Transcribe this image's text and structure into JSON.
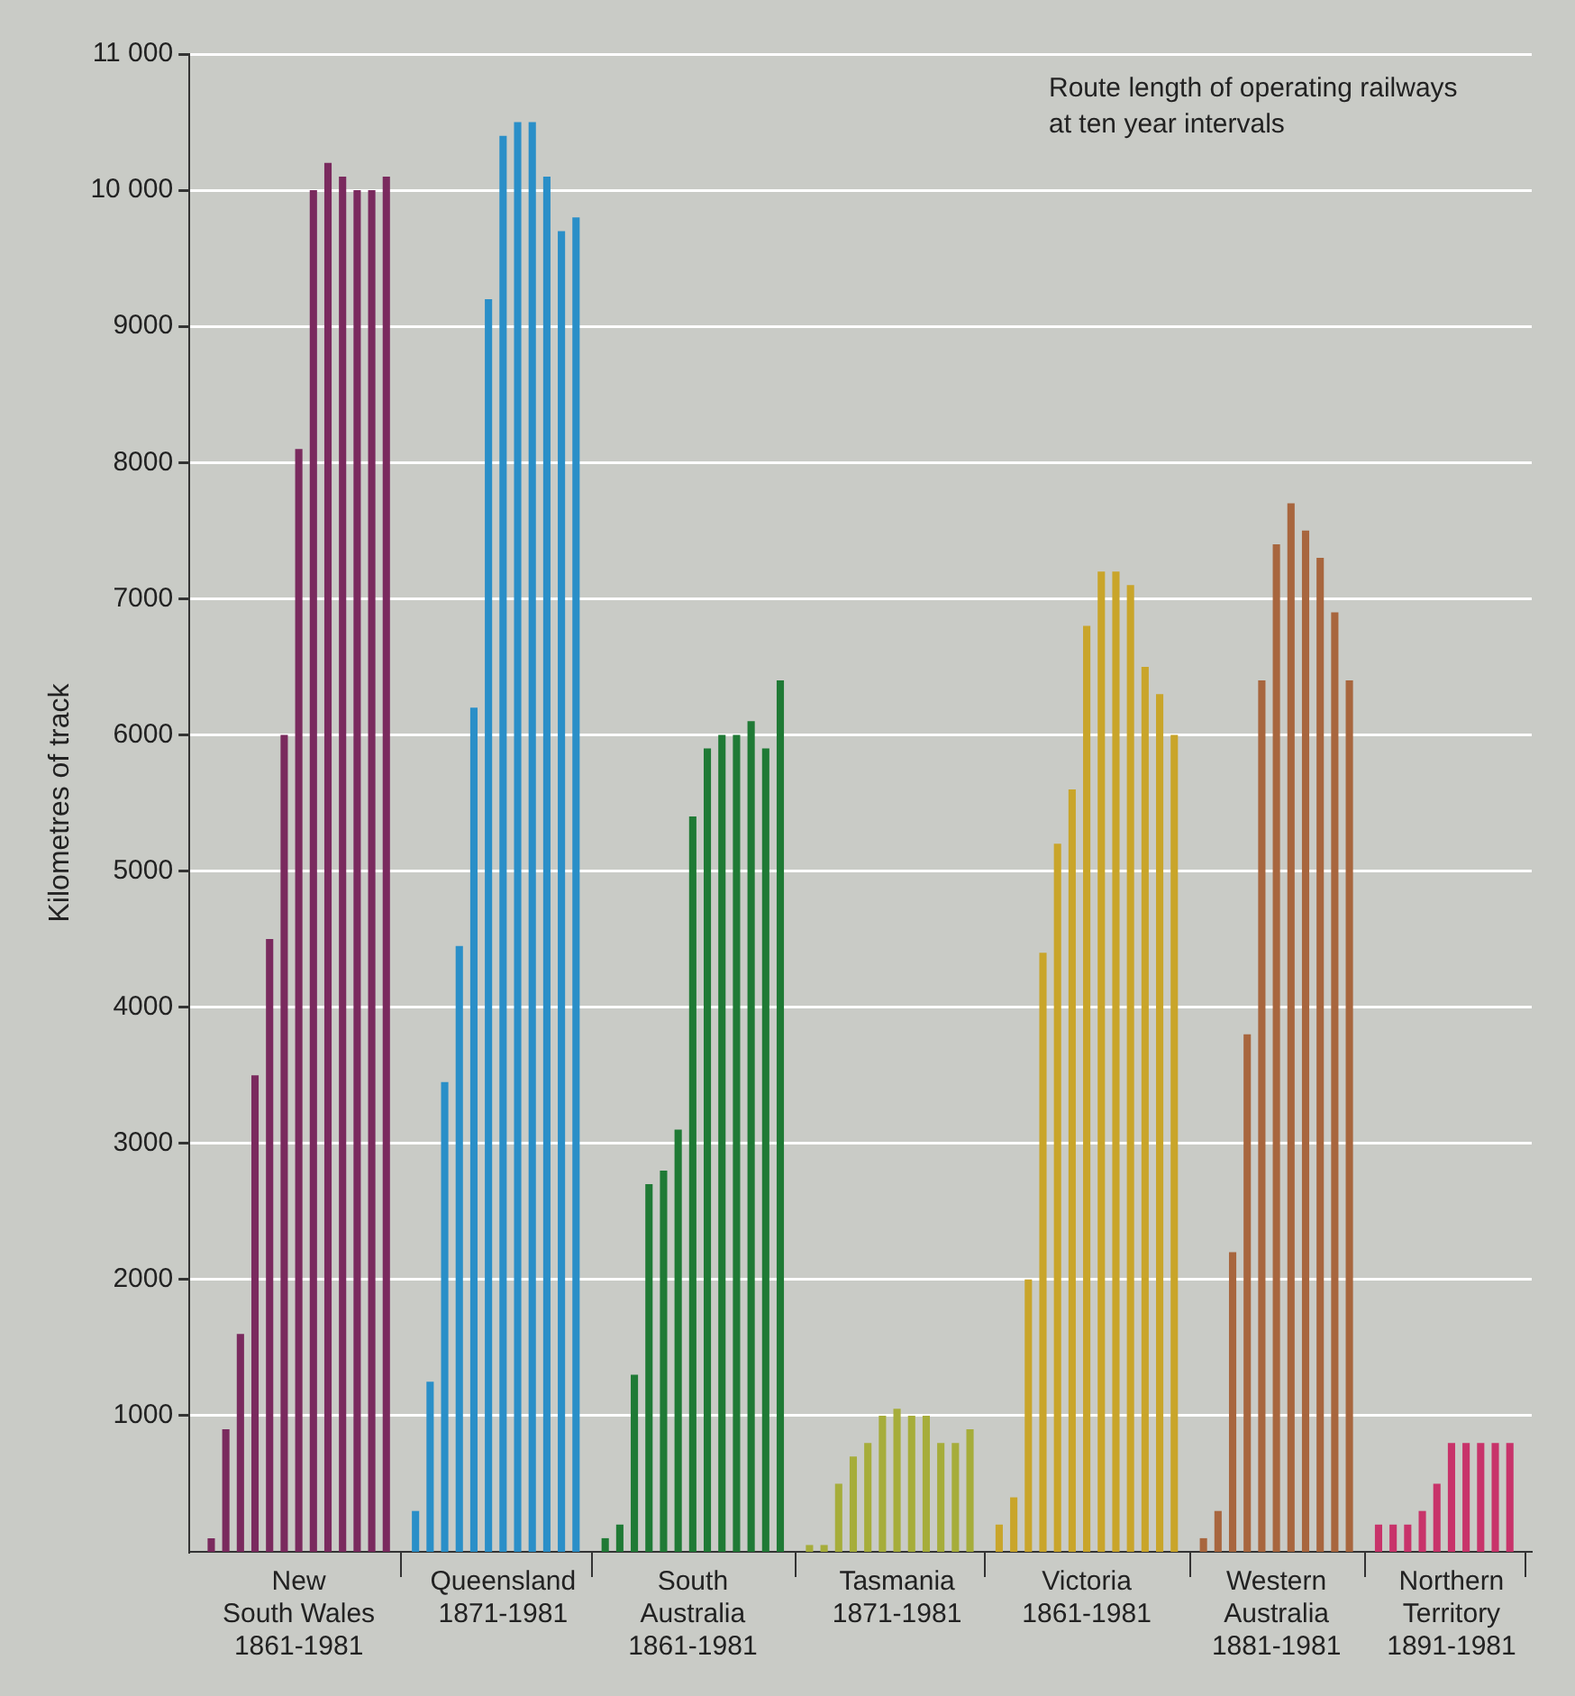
{
  "chart_data": {
    "type": "bar",
    "title": "Route length of operating railways\nat ten year intervals",
    "ylabel": "Kilometres of track",
    "categories": [
      null,
      null,
      null,
      null,
      null,
      null,
      null,
      "New\nSouth Wales\n1861-1981",
      null,
      null,
      null,
      null,
      null,
      null,
      null,
      null,
      null,
      null,
      null,
      null,
      null,
      "Queensland\n1871-1981",
      null,
      null,
      null,
      null,
      null,
      null,
      null,
      null,
      null,
      null,
      null,
      null,
      "South\nAustralia\n1861-1981",
      null,
      null,
      null,
      null,
      null,
      null,
      null,
      null,
      null,
      null,
      null,
      null,
      null,
      "Tasmania\n1871-1981",
      null,
      null,
      null,
      null,
      null,
      null,
      null,
      null,
      null,
      null,
      null,
      null,
      "Victoria\n1861-1981",
      null,
      null,
      null,
      null,
      null,
      null,
      null,
      null,
      null,
      null,
      null,
      null,
      "Western\nAustralia\n1881-1981",
      null,
      null,
      null,
      null,
      null,
      null,
      null,
      null,
      null,
      null,
      null,
      "Northern\nTerritory\n1891-1981",
      null,
      null,
      null,
      null,
      null
    ],
    "values": [
      null,
      100,
      900,
      1600,
      3500,
      4500,
      6000,
      8100,
      10000,
      10200,
      10100,
      10000,
      10000,
      10100,
      null,
      300,
      1250,
      3450,
      4450,
      6200,
      9200,
      10400,
      10500,
      10500,
      10100,
      9700,
      9800,
      null,
      100,
      200,
      1300,
      2700,
      2800,
      3100,
      5400,
      5900,
      6000,
      6000,
      6100,
      5900,
      6400,
      null,
      50,
      50,
      500,
      700,
      800,
      1000,
      1050,
      1000,
      1000,
      800,
      800,
      900,
      null,
      200,
      400,
      2000,
      4400,
      5200,
      5600,
      6800,
      7200,
      7200,
      7100,
      6500,
      6300,
      6000,
      null,
      100,
      300,
      2200,
      3800,
      6400,
      7400,
      7700,
      7500,
      7300,
      6900,
      6400,
      null,
      200,
      200,
      200,
      300,
      500,
      800,
      800,
      800,
      800,
      800,
      null
    ],
    "colors": [
      null,
      "#7a2a5e",
      "#7a2a5e",
      "#7a2a5e",
      "#7a2a5e",
      "#7a2a5e",
      "#7a2a5e",
      "#7a2a5e",
      "#7a2a5e",
      "#7a2a5e",
      "#7a2a5e",
      "#7a2a5e",
      "#7a2a5e",
      "#7a2a5e",
      null,
      "#2a8fc8",
      "#2a8fc8",
      "#2a8fc8",
      "#2a8fc8",
      "#2a8fc8",
      "#2a8fc8",
      "#2a8fc8",
      "#2a8fc8",
      "#2a8fc8",
      "#2a8fc8",
      "#2a8fc8",
      "#2a8fc8",
      null,
      "#1f7a35",
      "#1f7a35",
      "#1f7a35",
      "#1f7a35",
      "#1f7a35",
      "#1f7a35",
      "#1f7a35",
      "#1f7a35",
      "#1f7a35",
      "#1f7a35",
      "#1f7a35",
      "#1f7a35",
      "#1f7a35",
      null,
      "#a6ad3a",
      "#a6ad3a",
      "#a6ad3a",
      "#a6ad3a",
      "#a6ad3a",
      "#a6ad3a",
      "#a6ad3a",
      "#a6ad3a",
      "#a6ad3a",
      "#a6ad3a",
      "#a6ad3a",
      "#a6ad3a",
      null,
      "#c9a52a",
      "#c9a52a",
      "#c9a52a",
      "#c9a52a",
      "#c9a52a",
      "#c9a52a",
      "#c9a52a",
      "#c9a52a",
      "#c9a52a",
      "#c9a52a",
      "#c9a52a",
      "#c9a52a",
      "#c9a52a",
      null,
      "#a8663e",
      "#a8663e",
      "#a8663e",
      "#a8663e",
      "#a8663e",
      "#a8663e",
      "#a8663e",
      "#a8663e",
      "#a8663e",
      "#a8663e",
      "#a8663e",
      null,
      "#c8336a",
      "#c8336a",
      "#c8336a",
      "#c8336a",
      "#c8336a",
      "#c8336a",
      "#c8336a",
      "#c8336a",
      "#c8336a",
      "#c8336a",
      null
    ],
    "ylim": [
      0,
      11000
    ],
    "yticks": [
      1000,
      2000,
      3000,
      4000,
      5000,
      6000,
      7000,
      8000,
      9000,
      {
        "value": 10000,
        "label": "10 000"
      },
      {
        "value": 11000,
        "label": "11 000"
      }
    ],
    "grid": "y",
    "legend": false
  }
}
